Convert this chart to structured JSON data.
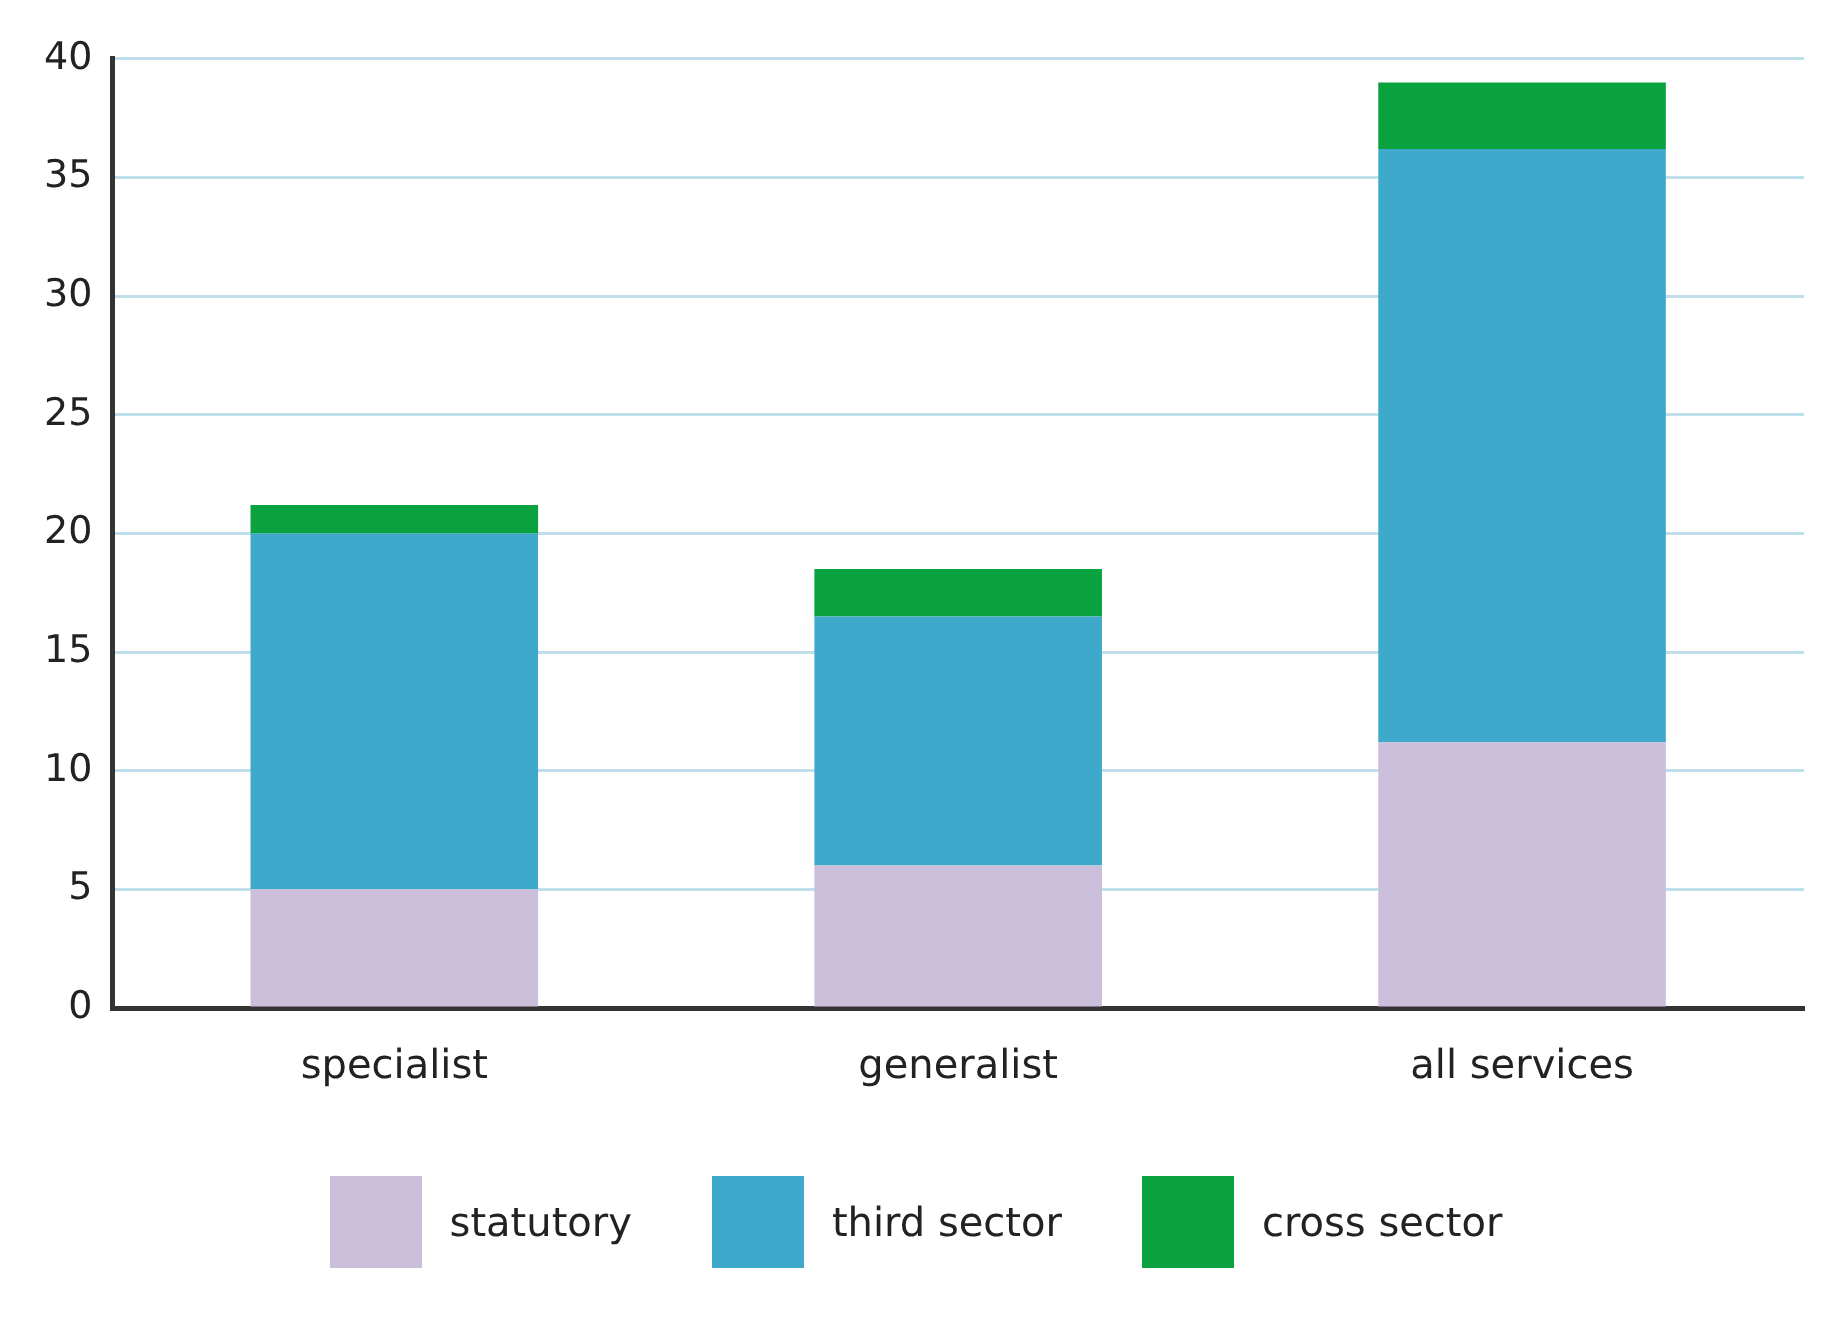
{
  "chart_data": {
    "type": "bar",
    "stacked": true,
    "categories": [
      "specialist",
      "generalist",
      "all services"
    ],
    "series": [
      {
        "name": "statutory",
        "color": "#cbbfdc",
        "values": [
          5,
          6,
          11.2
        ]
      },
      {
        "name": "third sector",
        "color": "#3fa9cc",
        "values": [
          15,
          10.5,
          25
        ]
      },
      {
        "name": "cross sector",
        "color": "#0aa23e",
        "values": [
          1.2,
          2,
          2.8
        ]
      }
    ],
    "ylim": [
      0,
      40
    ],
    "yticks": [
      0,
      5,
      10,
      15,
      20,
      25,
      30,
      35,
      40
    ],
    "grid": "y",
    "legend": "bottom"
  }
}
